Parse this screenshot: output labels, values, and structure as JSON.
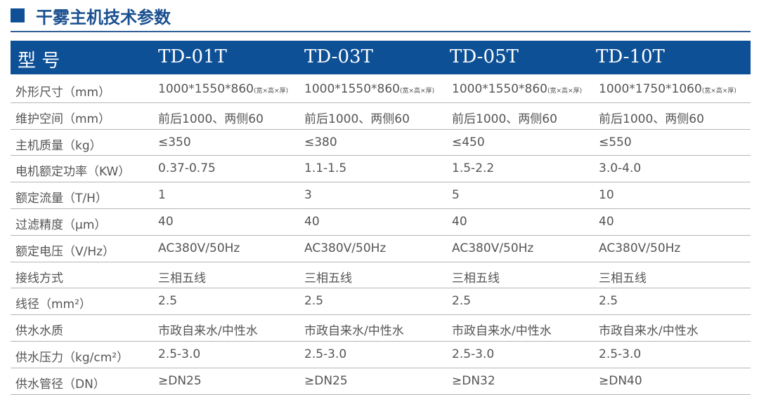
{
  "title": "干雾主机技术参数",
  "header": [
    "型 号",
    "TD-01T",
    "TD-03T",
    "TD-05T",
    "TD-10T"
  ],
  "rows": [
    [
      "外形尺寸（mm）",
      "1000*1550*860",
      "1000*1550*860",
      "1000*1550*860",
      "1000*1750*1060"
    ],
    [
      "维护空间（mm）",
      "前后1000、两侧60",
      "前后1000、两侧60",
      "前后1000、两侧60",
      "前后1000、两侧60"
    ],
    [
      "主机质量（kg）",
      "≤350",
      "≤380",
      "≤450",
      "≤550"
    ],
    [
      "电机额定功率（KW）",
      "0.37-0.75",
      "1.1-1.5",
      "1.5-2.2",
      "3.0-4.0"
    ],
    [
      "额定流量（T/H）",
      "1",
      "3",
      "5",
      "10"
    ],
    [
      "过滤精度（μm）",
      "40",
      "40",
      "40",
      "40"
    ],
    [
      "额定电压（V/Hz）",
      "AC380V/50Hz",
      "AC380V/50Hz",
      "AC380V/50Hz",
      "AC380V/50Hz"
    ],
    [
      "接线方式",
      "三相五线",
      "三相五线",
      "三相五线",
      "三相五线"
    ],
    [
      "线径（mm²）",
      "2.5",
      "2.5",
      "2.5",
      "2.5"
    ],
    [
      "供水水质",
      "市政自来水/中性水",
      "市政自来水/中性水",
      "市政自来水/中性水",
      "市政自来水/中性水"
    ],
    [
      "供水压力（kg/cm²）",
      "2.5-3.0",
      "2.5-3.0",
      "2.5-3.0",
      "2.5-3.0"
    ],
    [
      "供水管径（DN）",
      "≥DN25",
      "≥DN25",
      "≥DN32",
      "≥DN40"
    ]
  ],
  "dim_note": "(宽×高×厚)"
}
